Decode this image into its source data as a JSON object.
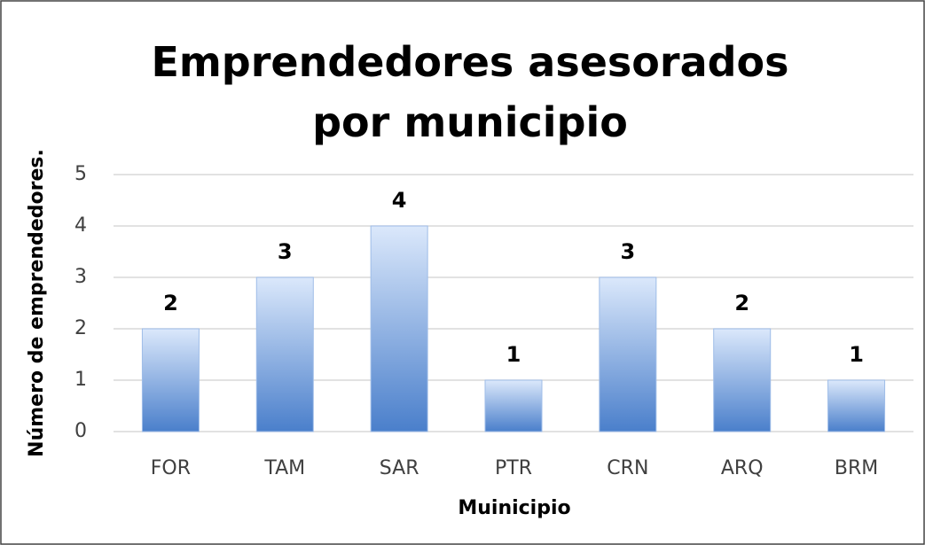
{
  "chart_data": {
    "type": "bar",
    "title": "Emprendedores asesorados por municipio",
    "x_label": "Muinicipio",
    "y_label": "Número de emprendedores.",
    "categories": [
      "FOR",
      "TAM",
      "SAR",
      "PTR",
      "CRN",
      "ARQ",
      "BRM"
    ],
    "values": [
      2,
      3,
      4,
      1,
      3,
      2,
      1
    ],
    "color": "#4a7fcb",
    "ylim": [
      0,
      5
    ],
    "yticks": [
      0,
      1,
      2,
      3,
      4,
      5
    ],
    "grid": true
  }
}
